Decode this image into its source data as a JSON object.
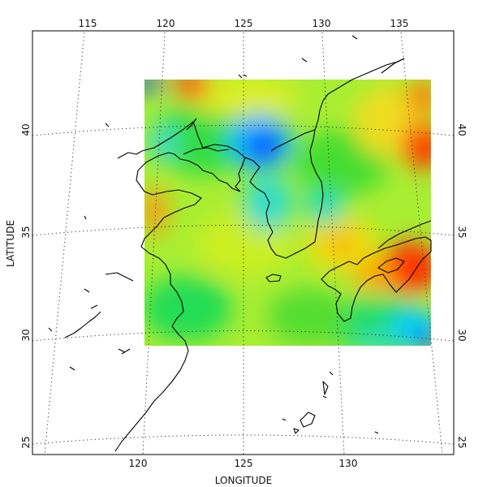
{
  "map": {
    "x_label": "LONGITUDE",
    "y_label": "LATITUDE",
    "top_longitude_ticks": [
      "115",
      "120",
      "125",
      "130",
      "135"
    ],
    "bottom_longitude_ticks": [
      "120",
      "125",
      "130"
    ],
    "left_latitude_ticks": [
      "40",
      "35",
      "30",
      "25"
    ],
    "right_latitude_ticks": [
      "40",
      "35",
      "30",
      "25"
    ],
    "projection": "conic",
    "extent": {
      "lon_min": 113,
      "lon_max": 137,
      "lat_min": 25,
      "lat_max": 43
    },
    "data_field": {
      "lon_range": [
        120,
        135
      ],
      "lat_range": [
        30,
        42
      ],
      "colormap": "rainbow",
      "high_areas": [
        "Japan (southwest Honshu / Shikoku)",
        "northeast edge near 135E 40N",
        "top edge near 122E 42N",
        "western edge near 120E 35N"
      ],
      "low_areas": [
        "North Korea (around 126E 39N)",
        "southeast corner near 135E 30N",
        "northwest corner near 120E 42N"
      ]
    },
    "colors": {
      "high": "#ff2200",
      "mid": "#33dd44",
      "low": "#1133ff",
      "background": "#ffffff",
      "coastline": "#000000"
    }
  }
}
